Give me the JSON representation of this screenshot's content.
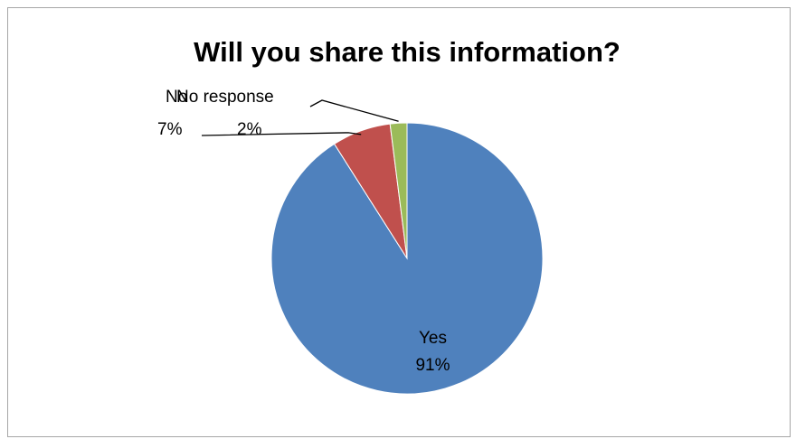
{
  "chart_data": {
    "type": "pie",
    "title": "Will you share this information?",
    "categories": [
      "Yes",
      "No",
      "No response"
    ],
    "values": [
      91,
      7,
      2
    ],
    "value_labels": [
      "91%",
      "7%",
      "2%"
    ],
    "colors": [
      "#4F81BD",
      "#C0504D",
      "#9BBB59"
    ],
    "legend": "none",
    "start_angle_deg": 0,
    "direction": "clockwise"
  }
}
